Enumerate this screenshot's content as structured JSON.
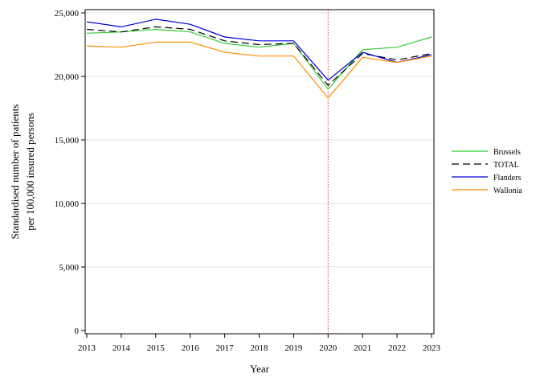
{
  "chart_data": {
    "type": "line",
    "xlabel": "Year",
    "ylabel_lines": [
      "Standardised number of patients",
      "per 100,000 insured persons"
    ],
    "x": [
      2013,
      2014,
      2015,
      2016,
      2017,
      2018,
      2019,
      2020,
      2021,
      2022,
      2023
    ],
    "x_tick_labels": [
      "2013",
      "2014",
      "2015",
      "2016",
      "2017",
      "2018",
      "2019",
      "2020",
      "2021",
      "2022",
      "2023"
    ],
    "ylim": [
      0,
      25000
    ],
    "y_ticks": [
      0,
      5000,
      10000,
      15000,
      20000,
      25000
    ],
    "y_tick_labels": [
      "0",
      "5,000",
      "10,000",
      "15,000",
      "20,000",
      "25,000"
    ],
    "grid": "horizontal",
    "reference_line": {
      "x": 2020,
      "color": "#c04040",
      "style": "dotted"
    },
    "legend_position": "right",
    "series": [
      {
        "name": "Brussels",
        "color": "#33cc33",
        "dash": "",
        "legend_dash": "",
        "values": [
          23400,
          23500,
          23700,
          23500,
          22600,
          22300,
          22600,
          19000,
          22100,
          22300,
          23100
        ]
      },
      {
        "name": "TOTAL",
        "color": "#000000",
        "dash": "9 5",
        "legend_dash": "9 5",
        "values": [
          23700,
          23500,
          23900,
          23700,
          22800,
          22500,
          22600,
          19300,
          21800,
          21300,
          21800
        ]
      },
      {
        "name": "Flanders",
        "color": "#0000dd",
        "dash": "",
        "legend_dash": "",
        "values": [
          24300,
          23900,
          24500,
          24100,
          23100,
          22800,
          22800,
          19700,
          21900,
          21100,
          21700
        ]
      },
      {
        "name": "Wallonia",
        "color": "#ff8c00",
        "dash": "",
        "legend_dash": "",
        "values": [
          22400,
          22300,
          22700,
          22700,
          21900,
          21600,
          21600,
          18300,
          21500,
          21100,
          21600
        ]
      }
    ]
  }
}
